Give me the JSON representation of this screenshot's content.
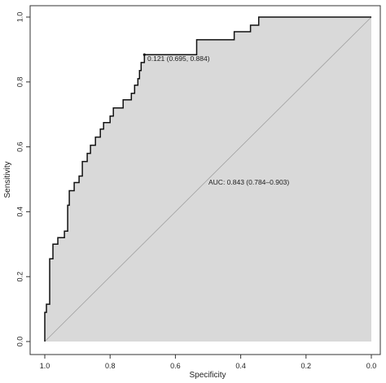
{
  "chart_data": {
    "type": "line",
    "subtype": "roc-curve",
    "xlabel": "Specificity",
    "ylabel": "Sensitivity",
    "x_reversed": true,
    "xlim": [
      1.0,
      0.0
    ],
    "ylim": [
      0.0,
      1.0
    ],
    "x_ticks": [
      {
        "value": 1.0,
        "label": "1.0"
      },
      {
        "value": 0.8,
        "label": "0.8"
      },
      {
        "value": 0.6,
        "label": "0.6"
      },
      {
        "value": 0.4,
        "label": "0.4"
      },
      {
        "value": 0.2,
        "label": "0.2"
      },
      {
        "value": 0.0,
        "label": "0.0"
      }
    ],
    "y_ticks": [
      {
        "value": 0.0,
        "label": "0.0"
      },
      {
        "value": 0.2,
        "label": "0.2"
      },
      {
        "value": 0.4,
        "label": "0.4"
      },
      {
        "value": 0.6,
        "label": "0.6"
      },
      {
        "value": 0.8,
        "label": "0.8"
      },
      {
        "value": 1.0,
        "label": "1.0"
      }
    ],
    "grid": false,
    "fill_color": "#d9d9d9",
    "line_color": "#111111",
    "diagonal_color": "#a0a0a0",
    "curve": [
      [
        1.0,
        0.0
      ],
      [
        1.0,
        0.09
      ],
      [
        0.995,
        0.09
      ],
      [
        0.995,
        0.115
      ],
      [
        0.985,
        0.115
      ],
      [
        0.985,
        0.255
      ],
      [
        0.975,
        0.255
      ],
      [
        0.975,
        0.3
      ],
      [
        0.96,
        0.3
      ],
      [
        0.96,
        0.32
      ],
      [
        0.94,
        0.32
      ],
      [
        0.94,
        0.34
      ],
      [
        0.93,
        0.34
      ],
      [
        0.93,
        0.42
      ],
      [
        0.925,
        0.42
      ],
      [
        0.925,
        0.465
      ],
      [
        0.91,
        0.465
      ],
      [
        0.91,
        0.49
      ],
      [
        0.895,
        0.49
      ],
      [
        0.895,
        0.51
      ],
      [
        0.885,
        0.51
      ],
      [
        0.885,
        0.555
      ],
      [
        0.87,
        0.555
      ],
      [
        0.87,
        0.58
      ],
      [
        0.86,
        0.58
      ],
      [
        0.86,
        0.605
      ],
      [
        0.845,
        0.605
      ],
      [
        0.845,
        0.63
      ],
      [
        0.83,
        0.63
      ],
      [
        0.83,
        0.655
      ],
      [
        0.82,
        0.655
      ],
      [
        0.82,
        0.675
      ],
      [
        0.8,
        0.675
      ],
      [
        0.8,
        0.695
      ],
      [
        0.79,
        0.695
      ],
      [
        0.79,
        0.72
      ],
      [
        0.76,
        0.72
      ],
      [
        0.76,
        0.745
      ],
      [
        0.735,
        0.745
      ],
      [
        0.735,
        0.765
      ],
      [
        0.725,
        0.765
      ],
      [
        0.725,
        0.79
      ],
      [
        0.715,
        0.79
      ],
      [
        0.715,
        0.81
      ],
      [
        0.71,
        0.81
      ],
      [
        0.71,
        0.835
      ],
      [
        0.705,
        0.835
      ],
      [
        0.705,
        0.86
      ],
      [
        0.695,
        0.86
      ],
      [
        0.695,
        0.884
      ],
      [
        0.535,
        0.884
      ],
      [
        0.535,
        0.93
      ],
      [
        0.42,
        0.93
      ],
      [
        0.42,
        0.955
      ],
      [
        0.37,
        0.955
      ],
      [
        0.37,
        0.975
      ],
      [
        0.345,
        0.975
      ],
      [
        0.345,
        1.0
      ],
      [
        0.0,
        1.0
      ]
    ],
    "threshold_point": {
      "specificity": 0.695,
      "sensitivity": 0.884,
      "label": "0.121 (0.695, 0.884)"
    },
    "auc_label": "AUC: 0.843 (0.784–0.903)",
    "auc_anchor": {
      "specificity": 0.505,
      "sensitivity": 0.49
    }
  }
}
